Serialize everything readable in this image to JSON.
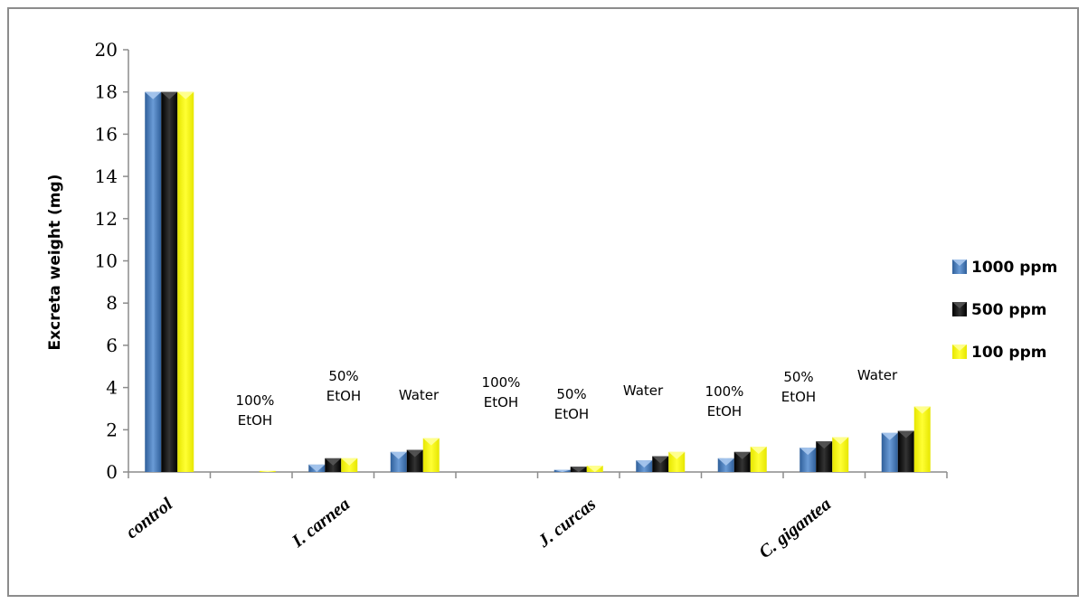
{
  "chart_data": {
    "type": "bar",
    "ylabel": "Excreta weight (mg)",
    "xlabel": "",
    "ylim": [
      0,
      20
    ],
    "yticks": [
      0,
      2,
      4,
      6,
      8,
      10,
      12,
      14,
      16,
      18,
      20
    ],
    "grid": false,
    "legend_position": "right",
    "category_labels": [
      "control",
      "I. carnea",
      "J. curcas",
      "C. gigantea"
    ],
    "annotations": [
      "100%\nEtOH",
      "50%\nEtOH",
      "Water",
      "100%\nEtOH",
      "50%\nEtOH",
      "Water",
      "100%\nEtOH",
      "50%\nEtOH",
      "Water"
    ],
    "series": [
      {
        "name": "1000 ppm",
        "color": "#4f81bd",
        "values": [
          18,
          0,
          0.35,
          0.95,
          0,
          0.1,
          0.55,
          0.65,
          1.15,
          1.85
        ]
      },
      {
        "name": "500 ppm",
        "color": "#111111",
        "values": [
          18,
          0,
          0.65,
          1.05,
          0,
          0.25,
          0.75,
          0.95,
          1.45,
          1.95
        ]
      },
      {
        "name": "100 ppm",
        "color": "#ffff00",
        "values": [
          18,
          0.05,
          0.65,
          1.6,
          0,
          0.3,
          0.95,
          1.2,
          1.65,
          3.1
        ]
      }
    ]
  }
}
